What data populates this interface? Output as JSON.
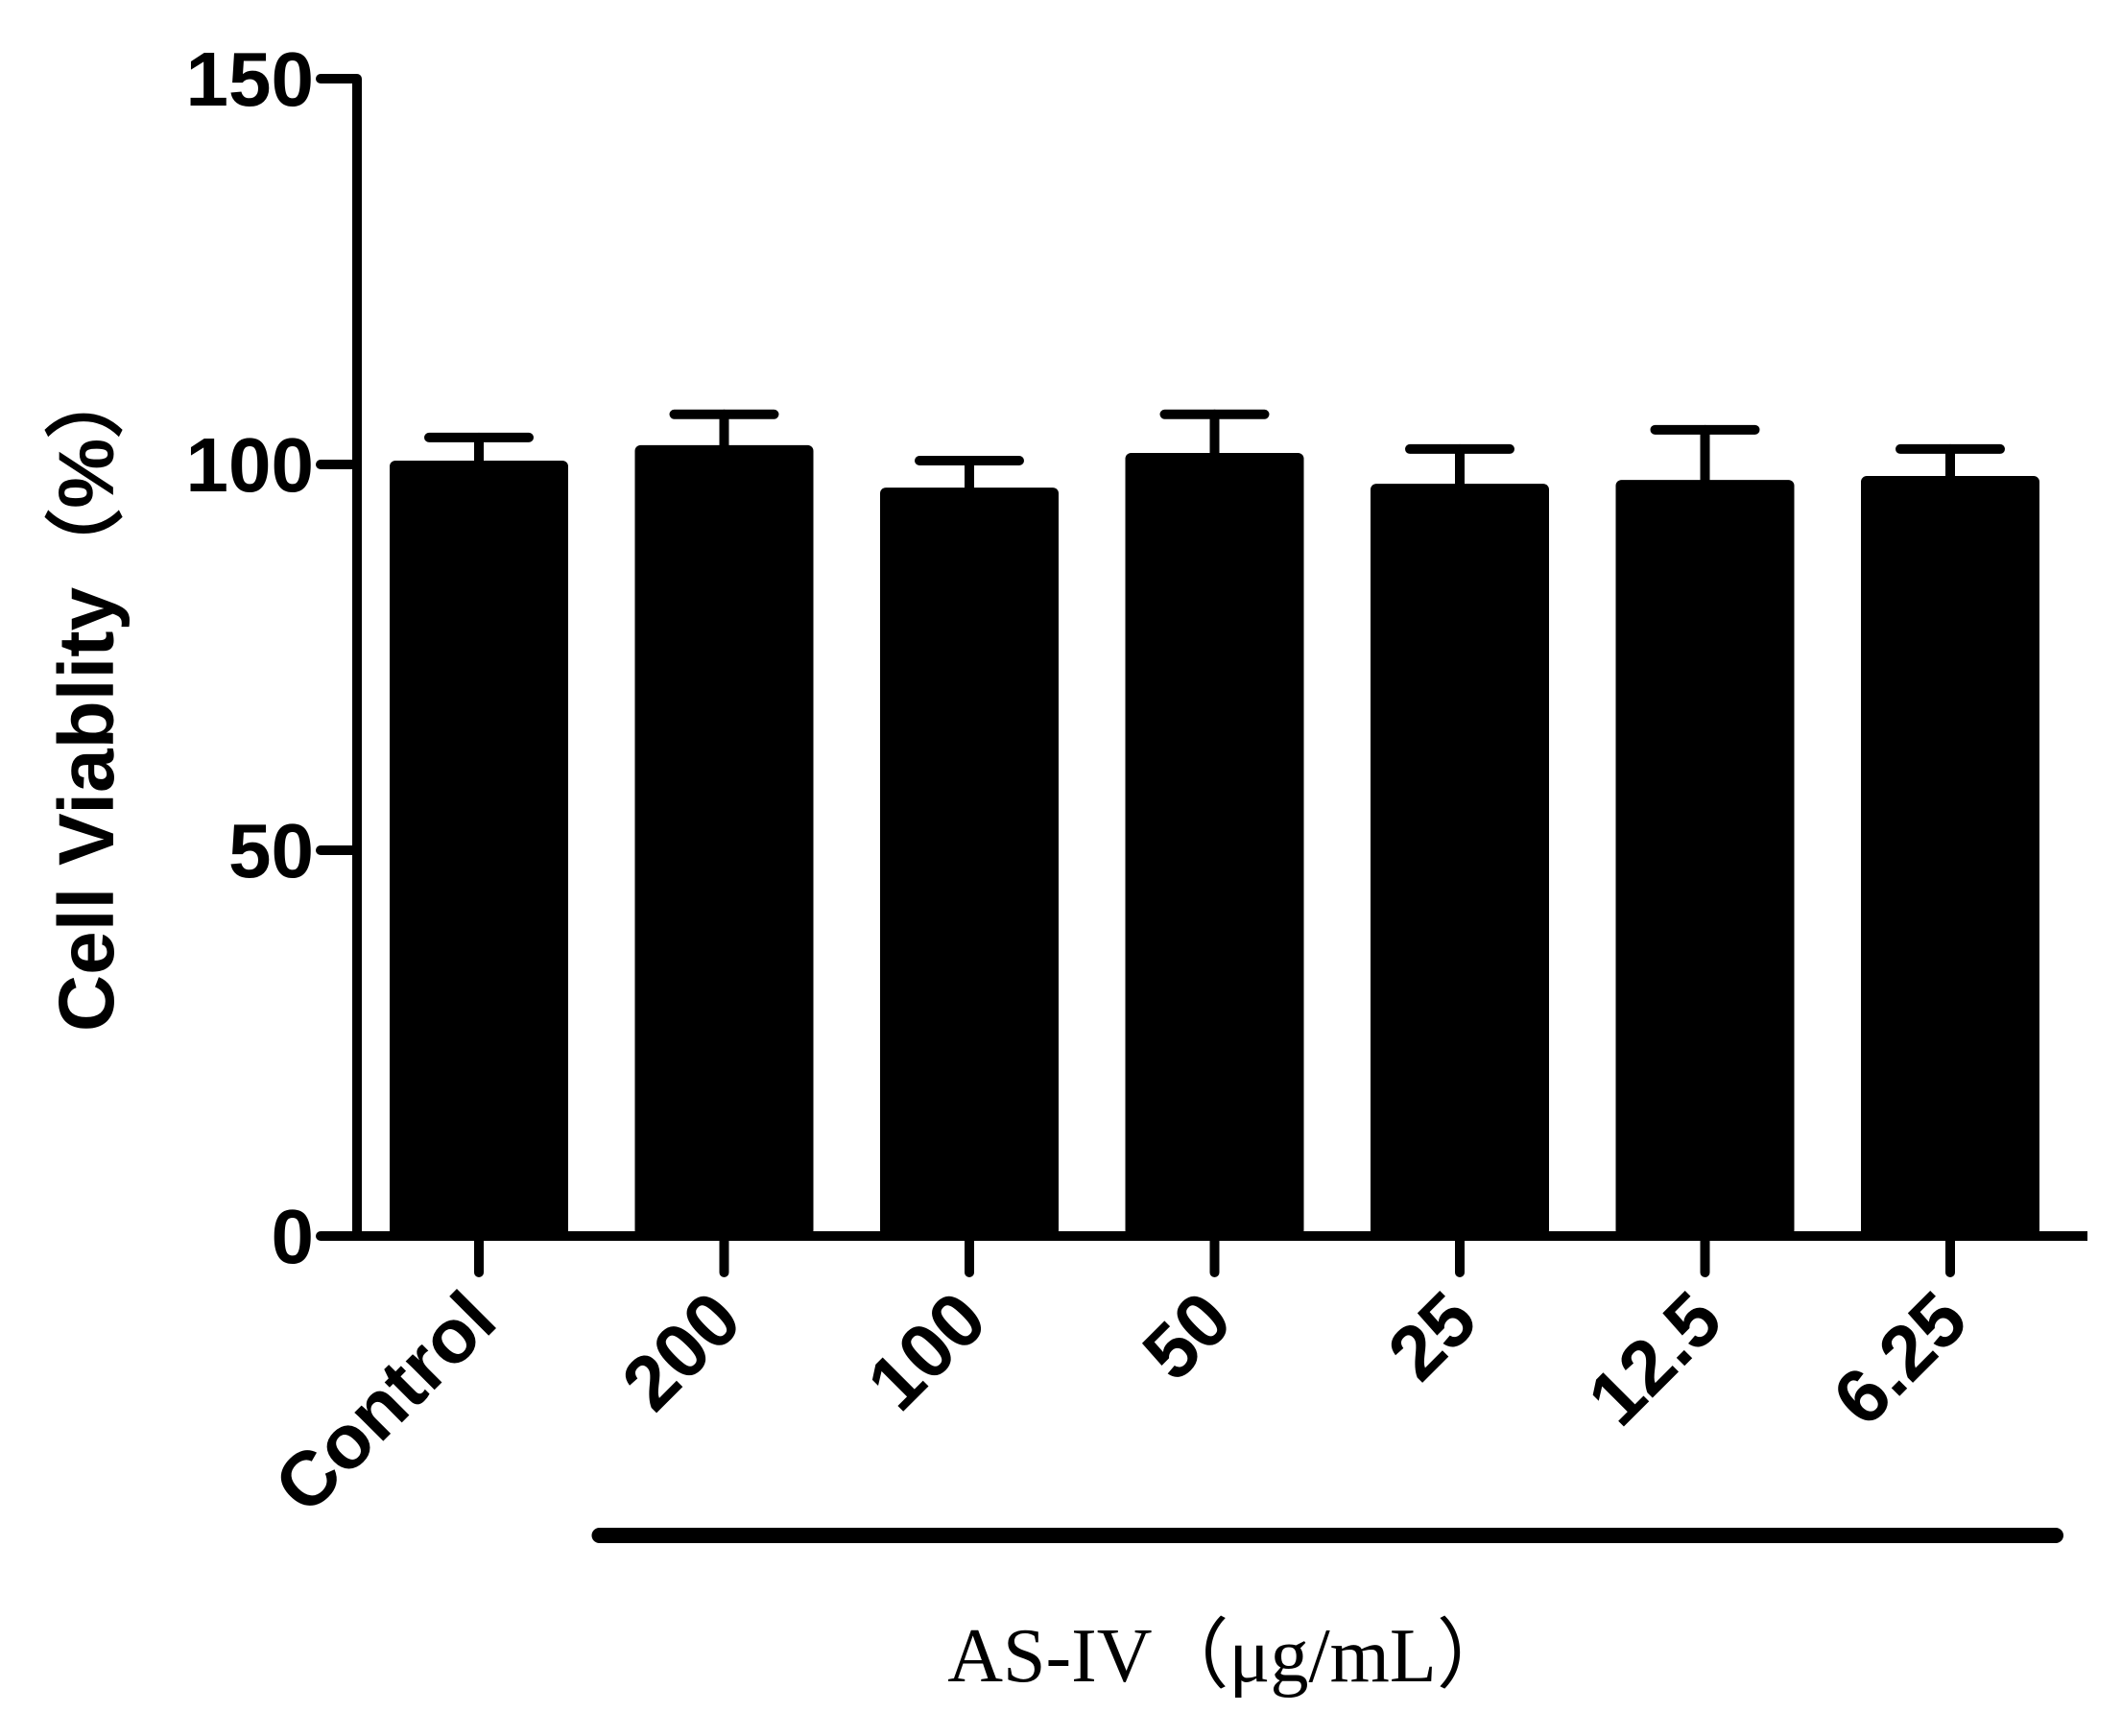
{
  "chart_data": {
    "type": "bar",
    "title": "",
    "xlabel": "",
    "ylabel": "Cell Viablity（%）",
    "ylim": [
      0,
      150
    ],
    "yticks": [
      0,
      50,
      100,
      150
    ],
    "categories": [
      "Control",
      "200",
      "100",
      "50",
      "25",
      "12.5",
      "6.25"
    ],
    "values": [
      100.5,
      102.5,
      97,
      101.5,
      97.5,
      98,
      98.5
    ],
    "errors": [
      3,
      4,
      3.5,
      5,
      4.5,
      6.5,
      3.5
    ],
    "bar_color": "#000000",
    "group_annotation": {
      "label": "AS-IV（μg/mL）",
      "categories": [
        "200",
        "100",
        "50",
        "25",
        "12.5",
        "6.25"
      ]
    }
  }
}
